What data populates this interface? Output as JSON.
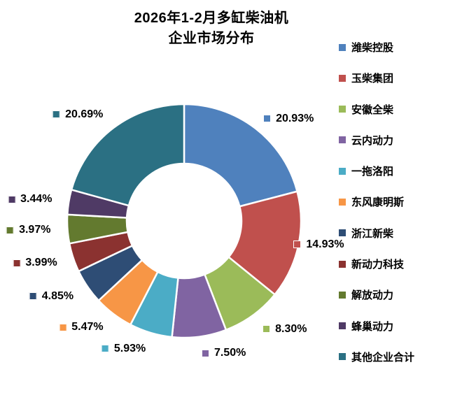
{
  "title": {
    "line1": "2026年1-2月多缸柴油机",
    "line2": "企业市场分布"
  },
  "chart_data": {
    "type": "pie",
    "subtype": "doughnut",
    "title": "2026年1-2月多缸柴油机 企业市场分布",
    "start_angle_deg": 0,
    "direction": "clockwise",
    "legend_position": "right",
    "categories": [
      "潍柴控股",
      "玉柴集团",
      "安徽全柴",
      "云内动力",
      "一拖洛阳",
      "东风康明斯",
      "浙江新柴",
      "新动力科技",
      "解放动力",
      "蜂巢动力",
      "其他企业合计"
    ],
    "values": [
      20.93,
      14.93,
      8.3,
      7.5,
      5.93,
      5.47,
      4.85,
      3.99,
      3.97,
      3.44,
      20.69
    ],
    "labels": [
      "20.93%",
      "14.93%",
      "8.30%",
      "7.50%",
      "5.93%",
      "5.47%",
      "4.85%",
      "3.99%",
      "3.97%",
      "3.44%",
      "20.69%"
    ],
    "colors": [
      "#4F81BD",
      "#C0504D",
      "#9BBB59",
      "#8064A2",
      "#4BACC6",
      "#F79646",
      "#2E4D75",
      "#8B3230",
      "#637A2F",
      "#4F3A65",
      "#2B7083"
    ]
  }
}
